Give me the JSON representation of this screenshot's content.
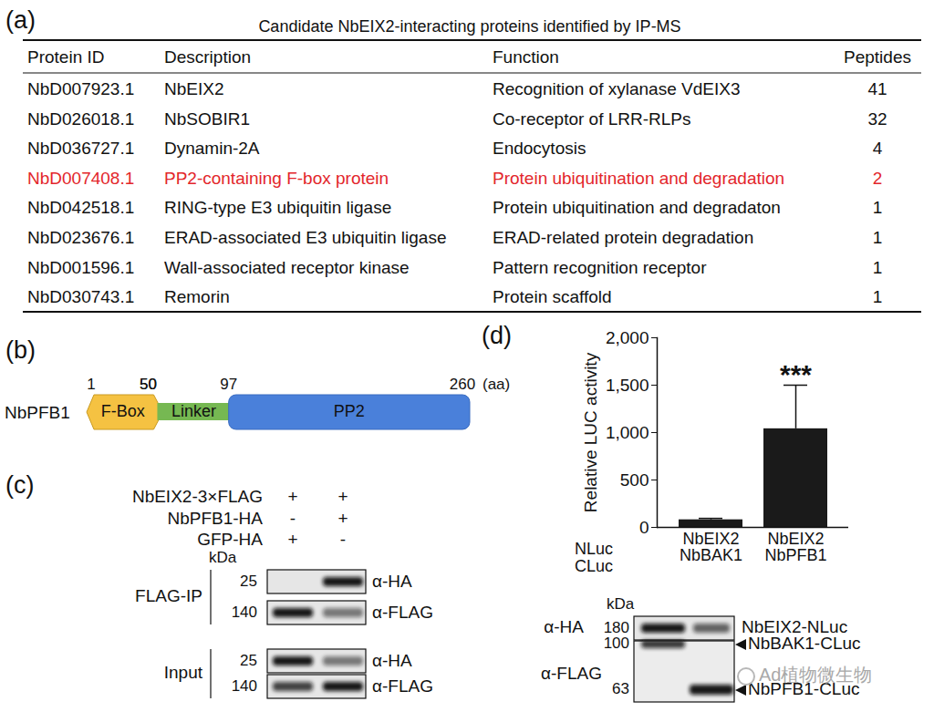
{
  "panel_a": {
    "label": "(a)",
    "title": "Candidate NbEIX2-interacting proteins identified by IP-MS",
    "table": {
      "header": [
        "Protein ID",
        "Description",
        "Function",
        "Peptides"
      ],
      "rows": [
        {
          "cells": [
            "NbD007923.1",
            "NbEIX2",
            "Recognition of xylanase VdEIX3",
            41
          ]
        },
        {
          "cells": [
            "NbD026018.1",
            "NbSOBIR1",
            "Co-receptor of LRR-RLPs",
            32
          ]
        },
        {
          "cells": [
            "NbD036727.1",
            "Dynamin-2A",
            "Endocytosis",
            4
          ]
        },
        {
          "cells": [
            "NbD007408.1",
            "PP2-containing F-box protein",
            "Protein ubiquitination and degradation",
            2
          ],
          "color": "#e3262b"
        },
        {
          "cells": [
            "NbD042518.1",
            "RING-type E3 ubiquitin ligase",
            "Protein ubiquitination and degradaton",
            1
          ]
        },
        {
          "cells": [
            "NbD023676.1",
            "ERAD-associated E3 ubiquitin ligase",
            "ERAD-related protein degradation",
            1
          ]
        },
        {
          "cells": [
            "NbD001596.1",
            "Wall-associated receptor kinase",
            "Pattern recognition receptor",
            1
          ]
        },
        {
          "cells": [
            "NbD030743.1",
            "Remorin",
            "Protein scaffold",
            1
          ]
        }
      ]
    }
  },
  "panel_b": {
    "label": "(b)",
    "protein": "NbPFB1",
    "unit": "(aa)",
    "domains": [
      {
        "name": "F-Box",
        "start": 1,
        "end": 50,
        "color": "#f5c242"
      },
      {
        "name": "Linker",
        "start": 50,
        "end": 97,
        "color": "#76b852"
      },
      {
        "name": "PP2",
        "start": 97,
        "end": 260,
        "color": "#4a80da"
      }
    ]
  },
  "panel_c": {
    "label": "(c)",
    "kda": "kDa",
    "rows": [
      {
        "name": "NbEIX2-3×FLAG",
        "lanes": [
          "+",
          "+"
        ]
      },
      {
        "name": "NbPFB1-HA",
        "lanes": [
          "-",
          "+"
        ]
      },
      {
        "name": "GFP-HA",
        "lanes": [
          "+",
          "-"
        ]
      }
    ],
    "groups": [
      {
        "name": "FLAG-IP",
        "blots": [
          {
            "marker": 25,
            "antibody": "α-HA"
          },
          {
            "marker": 140,
            "antibody": "α-FLAG"
          }
        ]
      },
      {
        "name": "Input",
        "blots": [
          {
            "marker": 25,
            "antibody": "α-HA"
          },
          {
            "marker": 140,
            "antibody": "α-FLAG"
          }
        ]
      }
    ]
  },
  "chart_data": {
    "type": "bar",
    "label": "(d)",
    "ylabel": "Relative LUC activity",
    "row_labels": [
      "NLuc",
      "CLuc"
    ],
    "categories": [
      "NbEIX2\nNbBAK1",
      "NbEIX2\nNbPFB1"
    ],
    "values": [
      80,
      1040
    ],
    "errors": [
      15,
      460
    ],
    "annotations": [
      {
        "category": "NbEIX2\nNbPFB1",
        "text": "***"
      }
    ],
    "color": "#1a1a1a",
    "ylim": [
      0,
      2000
    ],
    "yticks": [
      0,
      500,
      1000,
      1500,
      2000
    ]
  },
  "panel_d_blot": {
    "kda": "kDa",
    "blots": [
      {
        "antibody": "α-HA",
        "markers": [
          180
        ],
        "bands": [
          "NbEIX2-NLuc"
        ]
      },
      {
        "antibody": "α-FLAG",
        "markers": [
          100,
          63
        ],
        "bands": [
          "NbBAK1-CLuc",
          "NbPFB1-CLuc"
        ]
      }
    ]
  },
  "watermark": "Ad植物微生物"
}
